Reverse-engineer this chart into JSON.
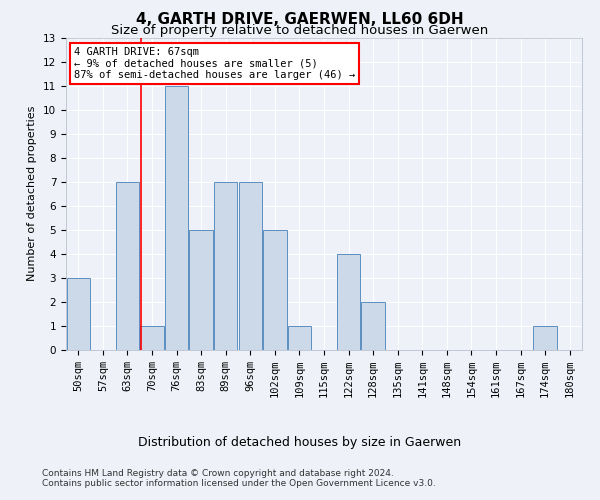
{
  "title": "4, GARTH DRIVE, GAERWEN, LL60 6DH",
  "subtitle": "Size of property relative to detached houses in Gaerwen",
  "xlabel": "Distribution of detached houses by size in Gaerwen",
  "ylabel": "Number of detached properties",
  "bin_labels": [
    "50sqm",
    "57sqm",
    "63sqm",
    "70sqm",
    "76sqm",
    "83sqm",
    "89sqm",
    "96sqm",
    "102sqm",
    "109sqm",
    "115sqm",
    "122sqm",
    "128sqm",
    "135sqm",
    "141sqm",
    "148sqm",
    "154sqm",
    "161sqm",
    "167sqm",
    "174sqm",
    "180sqm"
  ],
  "bar_heights": [
    3,
    0,
    7,
    1,
    11,
    5,
    7,
    7,
    5,
    1,
    0,
    4,
    2,
    0,
    0,
    0,
    0,
    0,
    0,
    1,
    0
  ],
  "bar_color": "#ccd9e8",
  "bar_edge_color": "#5b8fc2",
  "red_line_x": 2.57,
  "annotation_text": "4 GARTH DRIVE: 67sqm\n← 9% of detached houses are smaller (5)\n87% of semi-detached houses are larger (46) →",
  "annotation_box_color": "white",
  "annotation_box_edge_color": "red",
  "ylim": [
    0,
    13
  ],
  "yticks": [
    0,
    1,
    2,
    3,
    4,
    5,
    6,
    7,
    8,
    9,
    10,
    11,
    12,
    13
  ],
  "footnote1": "Contains HM Land Registry data © Crown copyright and database right 2024.",
  "footnote2": "Contains public sector information licensed under the Open Government Licence v3.0.",
  "background_color": "#eef2f8",
  "grid_color": "white",
  "title_fontsize": 11,
  "subtitle_fontsize": 9.5,
  "ylabel_fontsize": 8,
  "xlabel_fontsize": 9,
  "tick_fontsize": 7.5,
  "annotation_fontsize": 7.5,
  "footnote_fontsize": 6.5
}
